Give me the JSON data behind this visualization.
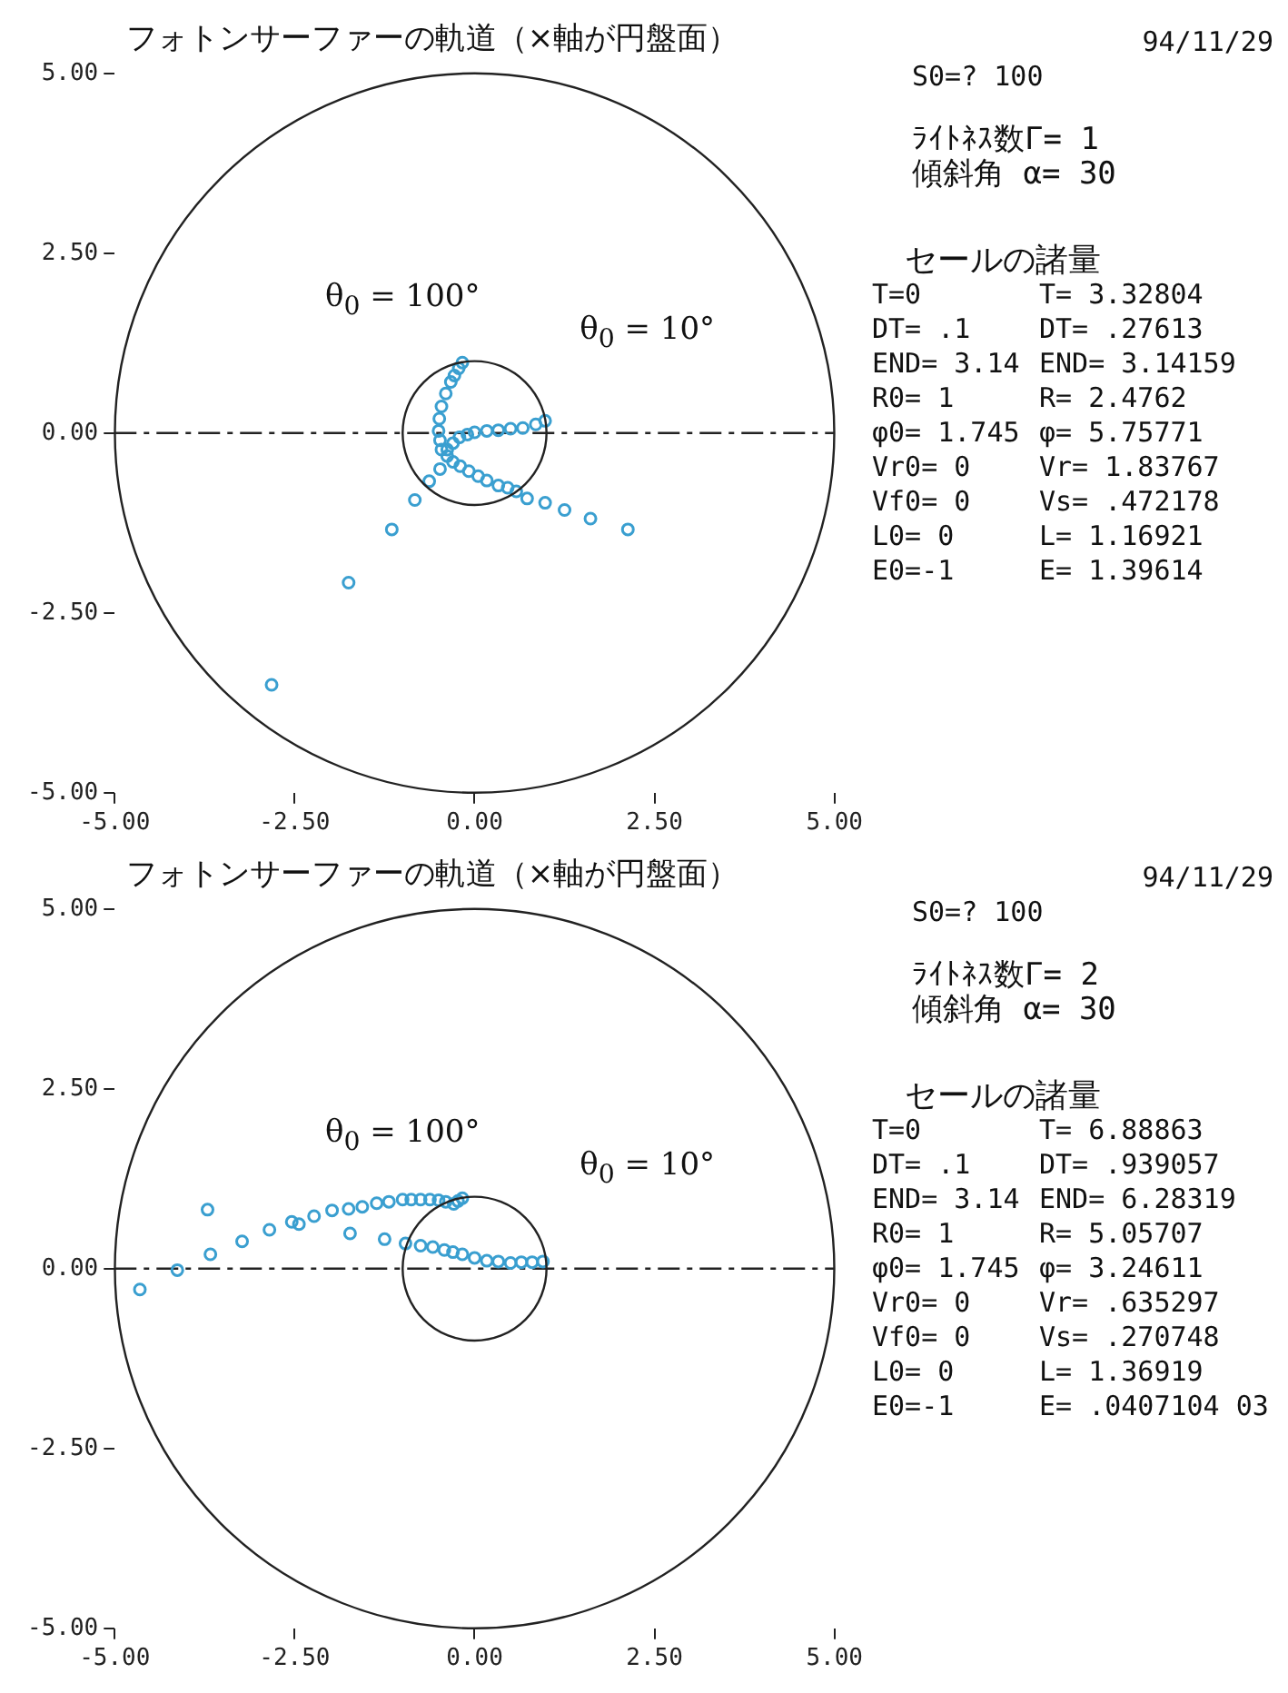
{
  "chart_data": [
    {
      "type": "scatter",
      "title": "フォトンサーファーの軌道（×軸が円盤面）",
      "xlim": [
        -5,
        5
      ],
      "ylim": [
        -5,
        5
      ],
      "xticks": [
        {
          "value": -5,
          "label": "-5.00"
        },
        {
          "value": -2.5,
          "label": "-2.50"
        },
        {
          "value": 0,
          "label": "0.00"
        },
        {
          "value": 2.5,
          "label": "2.50"
        },
        {
          "value": 5,
          "label": "5.00"
        }
      ],
      "yticks": [
        {
          "value": -5,
          "label": "-5.00"
        },
        {
          "value": -2.5,
          "label": "-2.50"
        },
        {
          "value": 0,
          "label": "0.00"
        },
        {
          "value": 2.5,
          "label": "2.50"
        },
        {
          "value": 5,
          "label": "5.00"
        }
      ],
      "marker": "circle",
      "legend": false,
      "series": [
        {
          "color": "#3a9fd0",
          "x": [
            -0.17,
            -0.22,
            -0.28,
            -0.33,
            -0.4,
            -0.46,
            -0.49,
            -0.5,
            -0.48,
            -0.46,
            -0.38,
            -0.3,
            -0.2,
            -0.08,
            0.05,
            0.17,
            0.33,
            0.46,
            0.58,
            0.73,
            0.98,
            1.25,
            1.61,
            2.13
          ],
          "values": [
            0.98,
            0.9,
            0.8,
            0.71,
            0.55,
            0.37,
            0.2,
            0.03,
            -0.1,
            -0.23,
            -0.32,
            -0.4,
            -0.46,
            -0.53,
            -0.6,
            -0.66,
            -0.73,
            -0.76,
            -0.81,
            -0.91,
            -0.97,
            -1.07,
            -1.19,
            -1.34
          ]
        },
        {
          "color": "#3a9fd0",
          "x": [
            0.98,
            0.85,
            0.67,
            0.5,
            0.33,
            0.17,
            0,
            -0.1,
            -0.21,
            -0.3,
            -0.38,
            -0.48,
            -0.63,
            -0.83,
            -1.15,
            -1.75,
            -2.82
          ],
          "values": [
            0.17,
            0.12,
            0.07,
            0.06,
            0.04,
            0.03,
            0.01,
            -0.02,
            -0.06,
            -0.14,
            -0.23,
            -0.5,
            -0.67,
            -0.93,
            -1.34,
            -2.08,
            -3.5
          ]
        }
      ],
      "ref_lines": [
        {
          "axis": "y",
          "value": 0,
          "line_style": "dashed",
          "color": "#222222"
        }
      ],
      "annotations": [
        "94/11/29",
        "S0=? 100",
        "ﾗｲﾄﾈｽ数Γ= 1",
        "傾斜角 α= 30",
        "セールの諸量",
        "T=0",
        "T= 3.32804",
        "DT= .1",
        "DT= .27613",
        "END= 3.14",
        "END= 3.14159",
        "R0= 1",
        "R= 2.4762",
        "φ0= 1.745",
        "φ= 5.75771",
        "Vr0= 0",
        "Vr= 1.83767",
        "Vf0= 0",
        "Vs= .472178",
        "L0= 0",
        "L= 1.16921",
        "E0=-1",
        "E= 1.39614",
        "θ$_{0}$ = 100°",
        "θ$_{0}$ = 10°"
      ]
    },
    {
      "type": "scatter",
      "title": "フォトンサーファーの軌道（×軸が円盤面）",
      "xlim": [
        -5,
        5
      ],
      "ylim": [
        -5,
        5
      ],
      "xticks": [
        {
          "value": -5,
          "label": "-5.00"
        },
        {
          "value": -2.5,
          "label": "-2.50"
        },
        {
          "value": 0,
          "label": "0.00"
        },
        {
          "value": 2.5,
          "label": "2.50"
        },
        {
          "value": 5,
          "label": "5.00"
        }
      ],
      "yticks": [
        {
          "value": -5,
          "label": "-5.00"
        },
        {
          "value": -2.5,
          "label": "-2.50"
        },
        {
          "value": 0,
          "label": "0.00"
        },
        {
          "value": 2.5,
          "label": "2.50"
        },
        {
          "value": 5,
          "label": "5.00"
        }
      ],
      "marker": "circle",
      "legend": false,
      "series": [
        {
          "color": "#3a9fd0",
          "x": [
            -0.17,
            -0.23,
            -0.29,
            -0.4,
            -0.5,
            -0.62,
            -0.75,
            -0.88,
            -1.0,
            -1.19,
            -1.36,
            -1.56,
            -1.75,
            -1.98,
            -2.23,
            -2.54,
            -2.85,
            -3.23,
            -3.67,
            -4.13,
            -4.65
          ],
          "values": [
            0.98,
            0.94,
            0.9,
            0.93,
            0.95,
            0.96,
            0.96,
            0.96,
            0.96,
            0.93,
            0.91,
            0.86,
            0.83,
            0.81,
            0.73,
            0.65,
            0.54,
            0.38,
            0.2,
            -0.02,
            -0.29
          ]
        },
        {
          "color": "#3a9fd0",
          "x": [
            0.95,
            0.8,
            0.65,
            0.5,
            0.33,
            0.17,
            0,
            -0.17,
            -0.3,
            -0.42,
            -0.58,
            -0.75,
            -0.96,
            -1.25,
            -1.73,
            -2.44,
            -3.71
          ],
          "values": [
            0.1,
            0.09,
            0.09,
            0.08,
            0.1,
            0.11,
            0.15,
            0.2,
            0.23,
            0.26,
            0.3,
            0.32,
            0.35,
            0.41,
            0.49,
            0.62,
            0.82
          ]
        }
      ],
      "ref_lines": [
        {
          "axis": "y",
          "value": 0,
          "line_style": "dashed",
          "color": "#222222"
        }
      ],
      "annotations": [
        "94/11/29",
        "S0=? 100",
        "ﾗｲﾄﾈｽ数Γ= 2",
        "傾斜角 α= 30",
        "セールの諸量",
        "T=0",
        "T= 6.88863",
        "DT= .1",
        "DT= .939057",
        "END= 3.14",
        "END= 6.28319",
        "R0= 1",
        "R= 5.05707",
        "φ0= 1.745",
        "φ= 3.24611",
        "Vr0= 0",
        "Vr= .635297",
        "Vf0= 0",
        "Vs= .270748",
        "L0= 0",
        "L= 1.36919",
        "E0=-1",
        "E= .0407104 03",
        "θ$_{0}$ = 100°",
        "θ$_{0}$ = 10°"
      ]
    }
  ]
}
